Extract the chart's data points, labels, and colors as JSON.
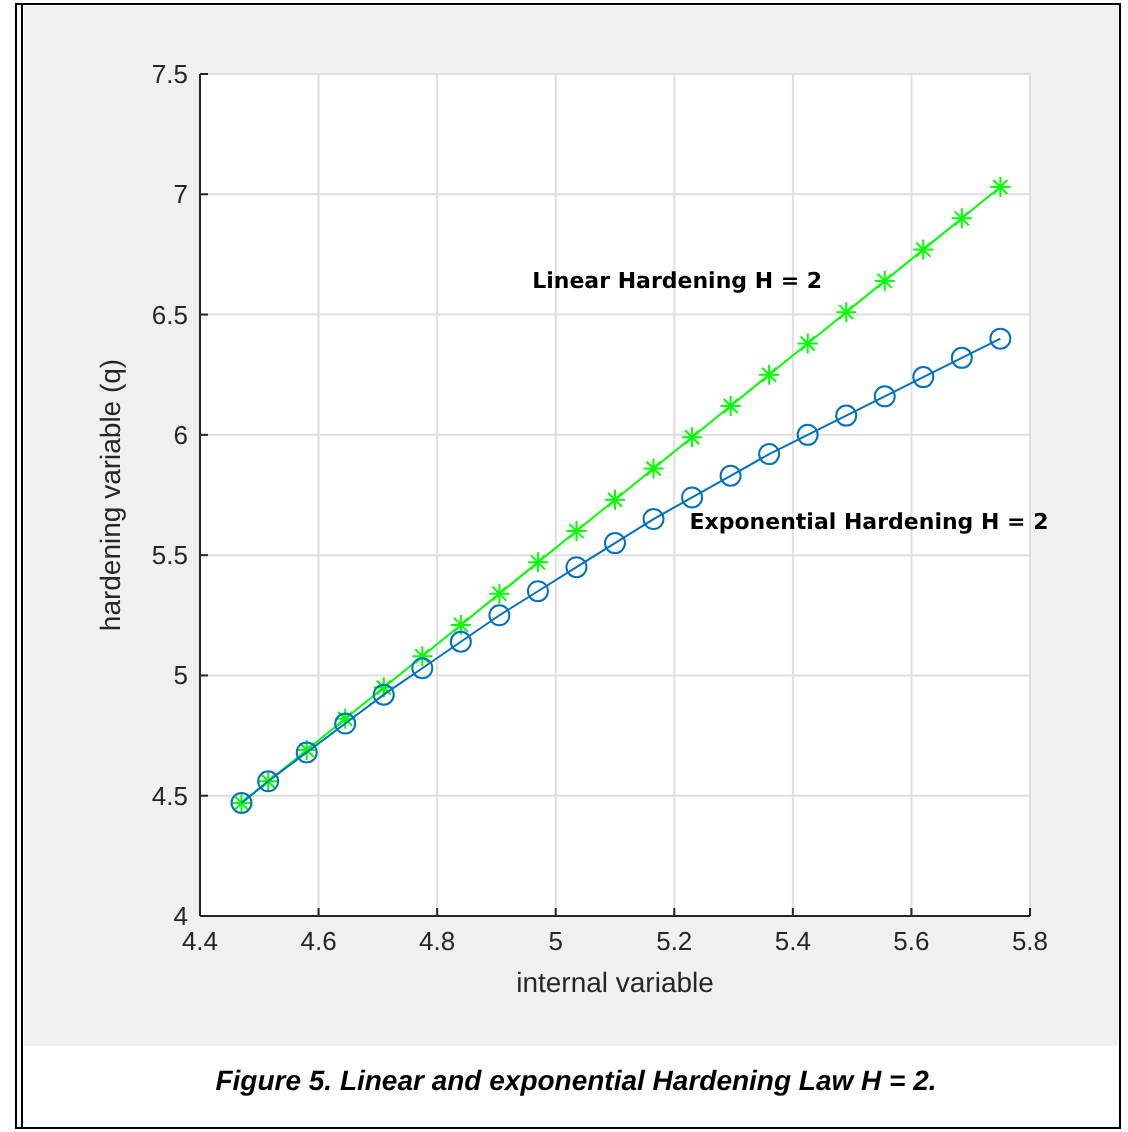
{
  "chart_data": {
    "type": "line",
    "xlabel": "internal variable",
    "ylabel": "hardening variable (q)",
    "xlim": [
      4.4,
      5.8
    ],
    "xticks": [
      4.4,
      4.6,
      4.8,
      5,
      5.2,
      5.4,
      5.6,
      5.8
    ],
    "ylim": [
      4,
      7.5
    ],
    "yticks": [
      4,
      4.5,
      5,
      5.5,
      6,
      6.5,
      7,
      7.5
    ],
    "grid": true,
    "annotations": [
      "Figure 5. Linear and exponential Hardening Law H = 2."
    ],
    "x": [
      4.47,
      4.515,
      4.58,
      4.645,
      4.71,
      4.775,
      4.84,
      4.905,
      4.97,
      5.035,
      5.1,
      5.165,
      5.23,
      5.295,
      5.36,
      5.425,
      5.49,
      5.555,
      5.62,
      5.685,
      5.75
    ],
    "series": [
      {
        "name": "Linear Hardening H = 2",
        "color": "#00ff00",
        "marker": "cross",
        "values": [
          4.47,
          4.56,
          4.69,
          4.82,
          4.95,
          5.08,
          5.21,
          5.34,
          5.47,
          5.6,
          5.73,
          5.86,
          5.99,
          6.12,
          6.25,
          6.38,
          6.51,
          6.64,
          6.77,
          6.9,
          7.03
        ]
      },
      {
        "name": "Exponential Hardening H = 2",
        "color": "#0072bd",
        "marker": "circle",
        "values": [
          4.47,
          4.56,
          4.68,
          4.8,
          4.92,
          5.03,
          5.14,
          5.25,
          5.35,
          5.45,
          5.55,
          5.65,
          5.74,
          5.83,
          5.92,
          6.0,
          6.08,
          6.16,
          6.24,
          6.32,
          6.4
        ]
      }
    ]
  }
}
